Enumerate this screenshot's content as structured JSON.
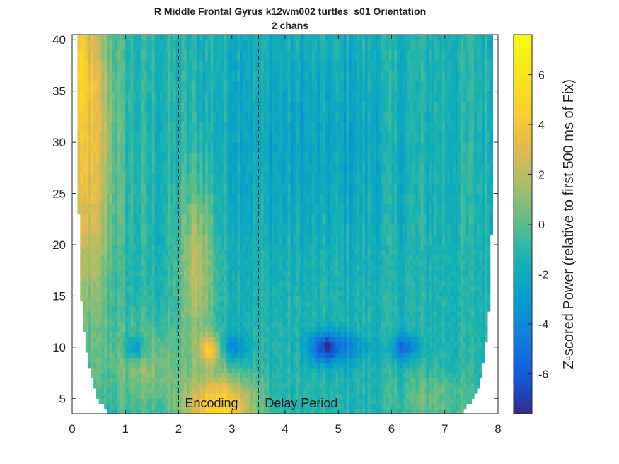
{
  "chart_data": {
    "type": "heatmap",
    "title": "R Middle Frontal Gyrus k12wm002 turtles_s01 Orientation",
    "subtitle": "2 chans",
    "xlabel": "",
    "ylabel": "",
    "xlim": [
      0,
      8
    ],
    "ylim": [
      3.5,
      40.5
    ],
    "x_ticks": [
      0,
      1,
      2,
      3,
      4,
      5,
      6,
      7,
      8
    ],
    "y_ticks": [
      5,
      10,
      15,
      20,
      25,
      30,
      35,
      40
    ],
    "colorbar": {
      "label": "Z-scored Power (relative to first 500 ms of Fix)",
      "limits": [
        -7.6,
        7.6
      ],
      "ticks": [
        -6,
        -4,
        -2,
        0,
        2,
        4,
        6
      ],
      "colormap": "parula"
    },
    "event_lines": [
      {
        "x": 2.0,
        "label": "Encoding"
      },
      {
        "x": 3.5,
        "label": "Delay Period"
      }
    ],
    "valid_window": {
      "frequencies": [
        4,
        5,
        6,
        7,
        8,
        9,
        10,
        11,
        12,
        13,
        14,
        15,
        16,
        17,
        18,
        20,
        22,
        25,
        40
      ],
      "t_start": [
        0.65,
        0.48,
        0.42,
        0.37,
        0.33,
        0.3,
        0.26,
        0.24,
        0.21,
        0.19,
        0.18,
        0.17,
        0.16,
        0.15,
        0.15,
        0.14,
        0.13,
        0.11,
        0.09
      ],
      "t_end": [
        7.35,
        7.55,
        7.62,
        7.67,
        7.71,
        7.74,
        7.76,
        7.78,
        7.8,
        7.82,
        7.83,
        7.84,
        7.85,
        7.86,
        7.86,
        7.87,
        7.88,
        7.89,
        7.91
      ]
    },
    "features": [
      {
        "name": "early broadband increase",
        "t": 0.3,
        "f": 30,
        "value": 4.2
      },
      {
        "name": "encoding low-frequency increase",
        "t": 2.8,
        "f": 4.5,
        "value": 5.5
      },
      {
        "name": "encoding alpha increase",
        "t": 2.6,
        "f": 9.8,
        "value": 5.0
      },
      {
        "name": "alpha decrease delay 1",
        "t": 4.75,
        "f": 10,
        "value": -6.5
      },
      {
        "name": "alpha decrease delay 2",
        "t": 6.25,
        "f": 10,
        "value": -5.0
      },
      {
        "name": "alpha decrease early",
        "t": 1.2,
        "f": 10,
        "value": -3.5
      }
    ],
    "base_value": -1.3
  }
}
